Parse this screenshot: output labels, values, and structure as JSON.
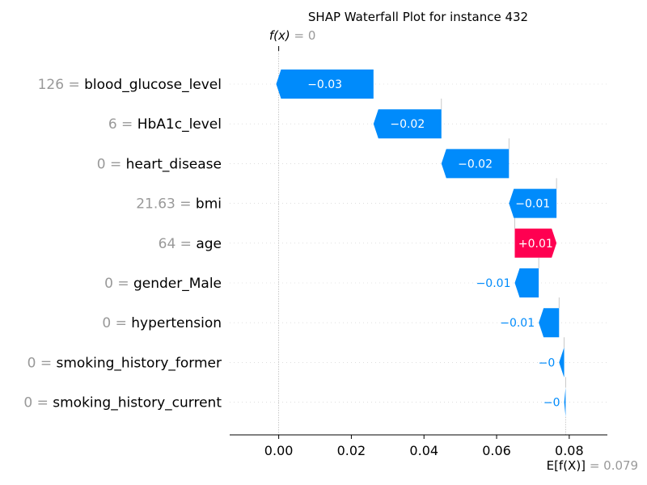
{
  "chart_data": {
    "type": "waterfall",
    "title": "SHAP Waterfall Plot for instance 432",
    "fx_label": "f(x)",
    "fx_value": "0",
    "base_label": "E[f(X)]",
    "base_value": "0.079",
    "xlim": [
      -0.0135,
      0.0905
    ],
    "x_ticks": [
      0.0,
      0.02,
      0.04,
      0.06,
      0.08
    ],
    "x_tick_labels": [
      "0.00",
      "0.02",
      "0.04",
      "0.06",
      "0.08"
    ],
    "features": [
      {
        "name": "blood_glucose_level",
        "value": "126",
        "contribution": -0.0268,
        "label": "−0.03"
      },
      {
        "name": "HbA1c_level",
        "value": "6",
        "contribution": -0.0187,
        "label": "−0.02"
      },
      {
        "name": "heart_disease",
        "value": "0",
        "contribution": -0.0186,
        "label": "−0.02"
      },
      {
        "name": "bmi",
        "value": "21.63",
        "contribution": -0.0131,
        "label": "−0.01"
      },
      {
        "name": "age",
        "value": "64",
        "contribution": 0.0115,
        "label": "+0.01"
      },
      {
        "name": "gender_Male",
        "value": "0",
        "contribution": -0.0066,
        "label": "−0.01"
      },
      {
        "name": "hypertension",
        "value": "0",
        "contribution": -0.0056,
        "label": "−0.01"
      },
      {
        "name": "smoking_history_former",
        "value": "0",
        "contribution": -0.0014,
        "label": "−0"
      },
      {
        "name": "smoking_history_current",
        "value": "0",
        "contribution": -0.0004,
        "label": "−0"
      }
    ],
    "colors": {
      "negative": "#008bfb",
      "positive": "#ff0051",
      "value_text": "#999999",
      "axis": "#000000",
      "grid": "#cccccc"
    }
  }
}
